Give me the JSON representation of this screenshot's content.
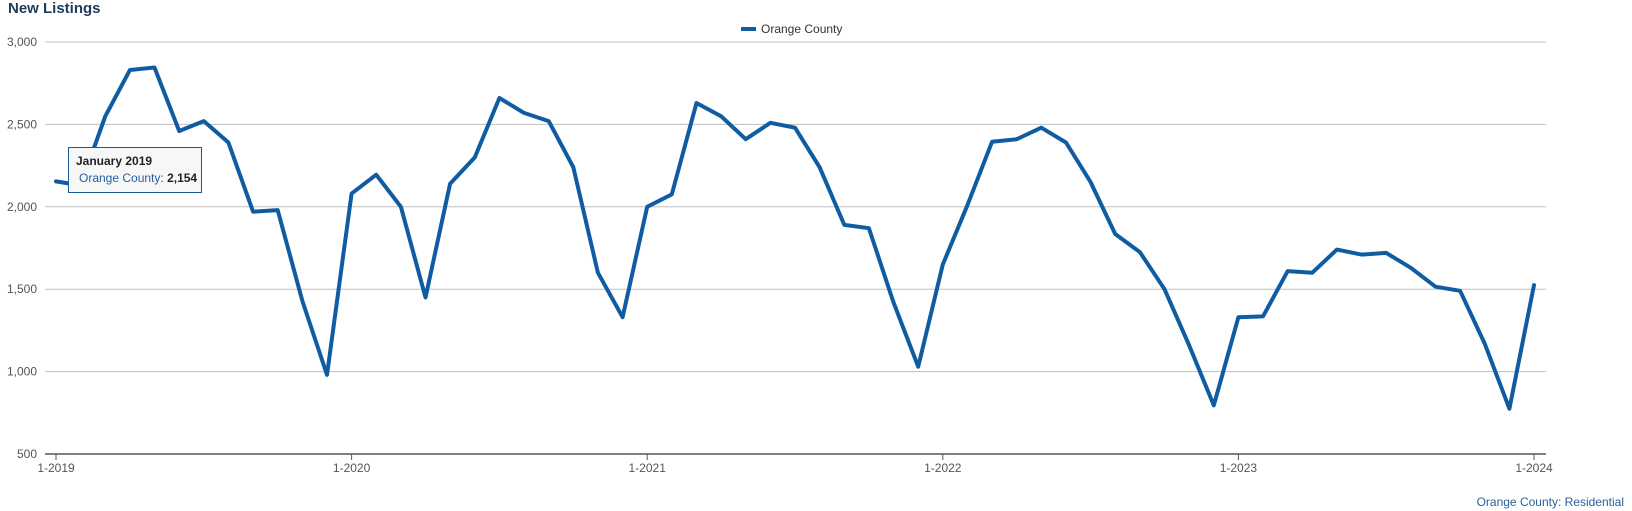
{
  "header": {
    "title": "New Listings"
  },
  "footnote": "Orange County: Residential",
  "tooltip": {
    "title": "January 2019",
    "label": "Orange County:",
    "value": "2,154"
  },
  "colors": {
    "series": "#0f5ca3",
    "grid": "#bfbfbf",
    "axis": "#555555"
  },
  "chart_data": {
    "type": "line",
    "title": "New Listings",
    "xlabel": "",
    "ylabel": "",
    "ylim": [
      500,
      3000
    ],
    "yticks": [
      500,
      1000,
      1500,
      2000,
      2500,
      3000
    ],
    "ytick_labels": [
      "500",
      "1,000",
      "1,500",
      "2,000",
      "2,500",
      "3,000"
    ],
    "xticks": [
      "1-2019",
      "1-2020",
      "1-2021",
      "1-2022",
      "1-2023",
      "1-2024"
    ],
    "grid": true,
    "legend_position": "top-center",
    "series": [
      {
        "name": "Orange County",
        "x": [
          "1-2019",
          "2-2019",
          "3-2019",
          "4-2019",
          "5-2019",
          "6-2019",
          "7-2019",
          "8-2019",
          "9-2019",
          "10-2019",
          "11-2019",
          "12-2019",
          "1-2020",
          "2-2020",
          "3-2020",
          "4-2020",
          "5-2020",
          "6-2020",
          "7-2020",
          "8-2020",
          "9-2020",
          "10-2020",
          "11-2020",
          "12-2020",
          "1-2021",
          "2-2021",
          "3-2021",
          "4-2021",
          "5-2021",
          "6-2021",
          "7-2021",
          "8-2021",
          "9-2021",
          "10-2021",
          "11-2021",
          "12-2021",
          "1-2022",
          "2-2022",
          "3-2022",
          "4-2022",
          "5-2022",
          "6-2022",
          "7-2022",
          "8-2022",
          "9-2022",
          "10-2022",
          "11-2022",
          "12-2022",
          "1-2023",
          "2-2023",
          "3-2023",
          "4-2023",
          "5-2023",
          "6-2023",
          "7-2023",
          "8-2023",
          "9-2023",
          "10-2023",
          "11-2023",
          "12-2023",
          "1-2024"
        ],
        "values": [
          2154,
          2130,
          2550,
          2830,
          2845,
          2460,
          2520,
          2390,
          1970,
          1980,
          1430,
          980,
          2080,
          2195,
          2000,
          1450,
          2140,
          2300,
          2660,
          2570,
          2520,
          2240,
          1600,
          1330,
          2000,
          2075,
          2630,
          2550,
          2410,
          2510,
          2480,
          2240,
          1890,
          1870,
          1420,
          1030,
          1650,
          2010,
          2395,
          2410,
          2480,
          2390,
          2150,
          1835,
          1725,
          1500,
          1160,
          795,
          1330,
          1335,
          1610,
          1600,
          1740,
          1710,
          1720,
          1630,
          1515,
          1490,
          1170,
          775,
          1525
        ]
      }
    ]
  }
}
